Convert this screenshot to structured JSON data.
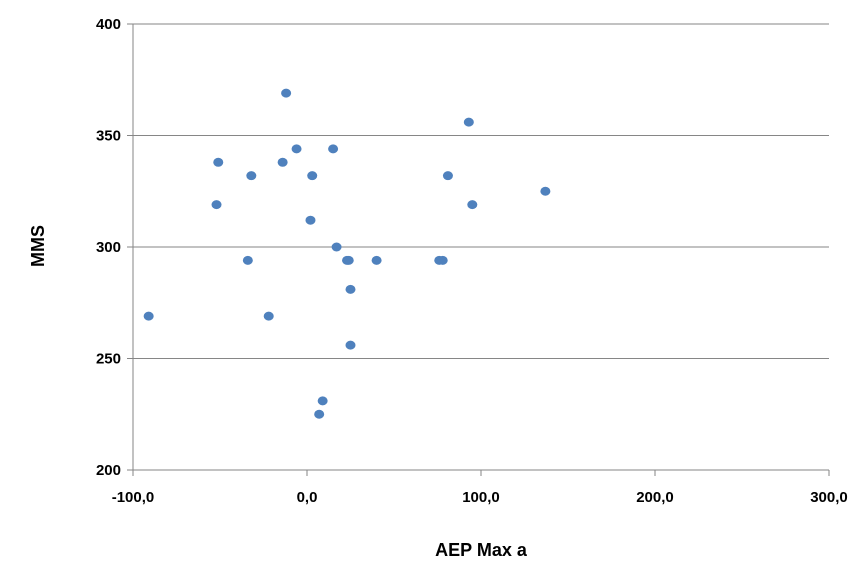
{
  "chart_data": {
    "type": "scatter",
    "title": "",
    "xlabel": "AEP Max a",
    "ylabel": "MMS",
    "xlim": [
      -100,
      300
    ],
    "ylim": [
      200,
      400
    ],
    "x_ticks": [
      -100,
      0,
      100,
      200,
      300
    ],
    "x_tick_labels": [
      "-100,0",
      "0,0",
      "100,0",
      "200,0",
      "300,0"
    ],
    "y_ticks": [
      200,
      250,
      300,
      350,
      400
    ],
    "y_tick_labels": [
      "200",
      "250",
      "300",
      "350",
      "400"
    ],
    "grid": "horizontal-major",
    "legend": "none",
    "colors": {
      "marker": "#4f81bd",
      "gridline": "#868686",
      "axis": "#868686"
    },
    "series": [
      {
        "points": [
          {
            "x": -91,
            "y": 269
          },
          {
            "x": -51,
            "y": 338
          },
          {
            "x": -52,
            "y": 319
          },
          {
            "x": -34,
            "y": 294
          },
          {
            "x": -32,
            "y": 332
          },
          {
            "x": -22,
            "y": 269
          },
          {
            "x": -14,
            "y": 338
          },
          {
            "x": -12,
            "y": 369
          },
          {
            "x": -6,
            "y": 344
          },
          {
            "x": 2,
            "y": 312
          },
          {
            "x": 3,
            "y": 332
          },
          {
            "x": 7,
            "y": 225
          },
          {
            "x": 9,
            "y": 231
          },
          {
            "x": 15,
            "y": 344
          },
          {
            "x": 17,
            "y": 300
          },
          {
            "x": 23,
            "y": 294
          },
          {
            "x": 24,
            "y": 294
          },
          {
            "x": 25,
            "y": 281
          },
          {
            "x": 25,
            "y": 256
          },
          {
            "x": 40,
            "y": 294
          },
          {
            "x": 76,
            "y": 294
          },
          {
            "x": 78,
            "y": 294
          },
          {
            "x": 81,
            "y": 332
          },
          {
            "x": 93,
            "y": 356
          },
          {
            "x": 95,
            "y": 319
          },
          {
            "x": 137,
            "y": 325
          }
        ]
      }
    ]
  }
}
